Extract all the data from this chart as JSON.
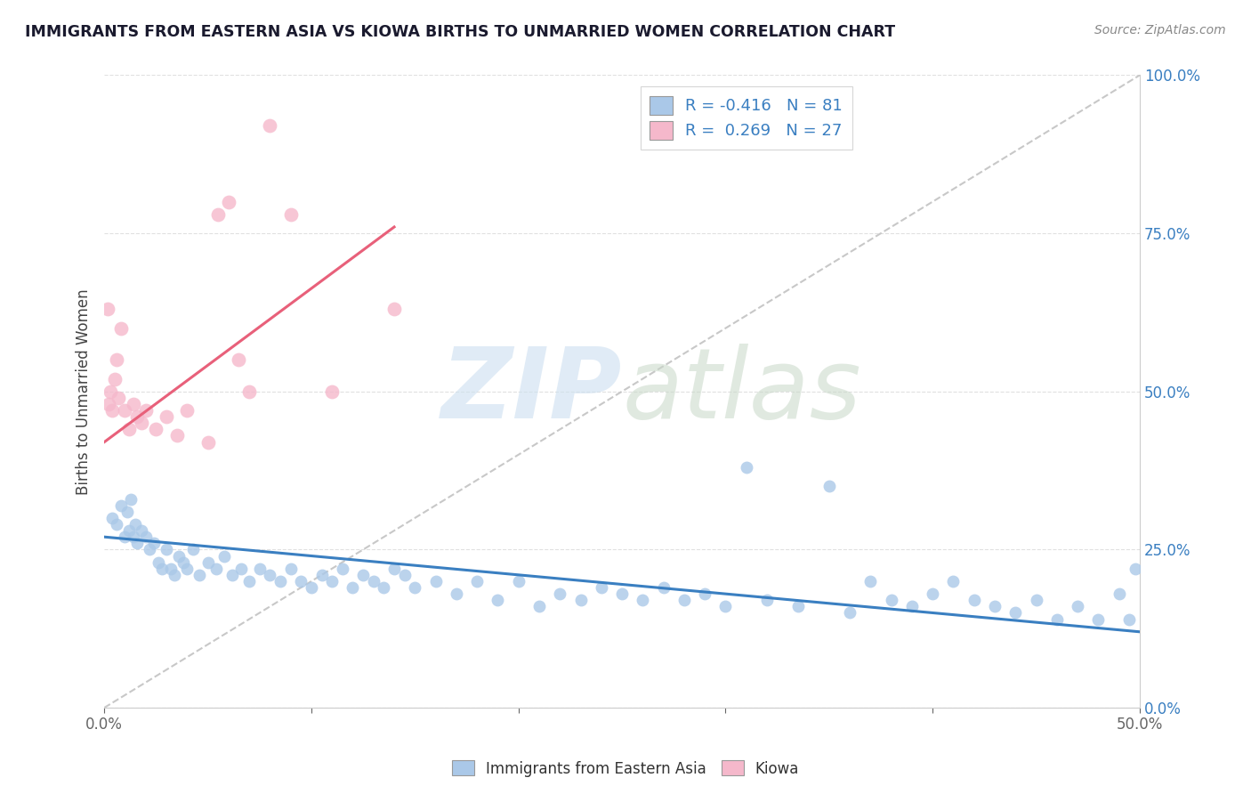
{
  "title": "IMMIGRANTS FROM EASTERN ASIA VS KIOWA BIRTHS TO UNMARRIED WOMEN CORRELATION CHART",
  "source": "Source: ZipAtlas.com",
  "ylabel": "Births to Unmarried Women",
  "ytick_vals": [
    0,
    25,
    50,
    75,
    100
  ],
  "xlim": [
    0,
    50
  ],
  "ylim": [
    0,
    100
  ],
  "legend_blue_label": "R = -0.416   N = 81",
  "legend_pink_label": "R =  0.269   N = 27",
  "blue_color": "#aac8e8",
  "pink_color": "#f5b8cb",
  "blue_line_color": "#3a7fc1",
  "pink_line_color": "#e8607a",
  "blue_scatter_x": [
    0.4,
    0.6,
    0.8,
    1.0,
    1.1,
    1.2,
    1.3,
    1.4,
    1.5,
    1.6,
    1.8,
    2.0,
    2.2,
    2.4,
    2.6,
    2.8,
    3.0,
    3.2,
    3.4,
    3.6,
    3.8,
    4.0,
    4.3,
    4.6,
    5.0,
    5.4,
    5.8,
    6.2,
    6.6,
    7.0,
    7.5,
    8.0,
    8.5,
    9.0,
    9.5,
    10.0,
    10.5,
    11.0,
    11.5,
    12.0,
    12.5,
    13.0,
    13.5,
    14.0,
    14.5,
    15.0,
    16.0,
    17.0,
    18.0,
    19.0,
    20.0,
    21.0,
    22.0,
    23.0,
    24.0,
    25.0,
    26.0,
    27.0,
    28.0,
    29.0,
    30.0,
    31.0,
    32.0,
    33.5,
    35.0,
    36.0,
    37.0,
    38.0,
    39.0,
    40.0,
    41.0,
    42.0,
    43.0,
    44.0,
    45.0,
    46.0,
    47.0,
    48.0,
    49.0,
    49.5,
    49.8
  ],
  "blue_scatter_y": [
    30,
    29,
    32,
    27,
    31,
    28,
    33,
    27,
    29,
    26,
    28,
    27,
    25,
    26,
    23,
    22,
    25,
    22,
    21,
    24,
    23,
    22,
    25,
    21,
    23,
    22,
    24,
    21,
    22,
    20,
    22,
    21,
    20,
    22,
    20,
    19,
    21,
    20,
    22,
    19,
    21,
    20,
    19,
    22,
    21,
    19,
    20,
    18,
    20,
    17,
    20,
    16,
    18,
    17,
    19,
    18,
    17,
    19,
    17,
    18,
    16,
    38,
    17,
    16,
    35,
    15,
    20,
    17,
    16,
    18,
    20,
    17,
    16,
    15,
    17,
    14,
    16,
    14,
    18,
    14,
    22
  ],
  "pink_scatter_x": [
    0.2,
    0.3,
    0.4,
    0.5,
    0.6,
    0.7,
    0.8,
    1.0,
    1.2,
    1.4,
    1.6,
    1.8,
    2.0,
    2.5,
    3.0,
    3.5,
    4.0,
    5.0,
    5.5,
    6.0,
    6.5,
    7.0,
    8.0,
    9.0,
    11.0,
    14.0,
    0.15
  ],
  "pink_scatter_y": [
    48,
    50,
    47,
    52,
    55,
    49,
    60,
    47,
    44,
    48,
    46,
    45,
    47,
    44,
    46,
    43,
    47,
    42,
    78,
    80,
    55,
    50,
    92,
    78,
    50,
    63,
    63
  ],
  "blue_trend_x": [
    0,
    50
  ],
  "blue_trend_y": [
    27,
    12
  ],
  "pink_trend_x": [
    0,
    14
  ],
  "pink_trend_y": [
    42,
    76
  ],
  "gray_trend_x": [
    0,
    50
  ],
  "gray_trend_y": [
    0,
    100
  ]
}
